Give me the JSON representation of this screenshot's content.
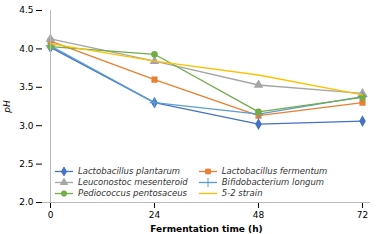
{
  "chart_data": {
    "type": "line",
    "x": [
      0,
      24,
      48,
      72
    ],
    "series": [
      {
        "name": "Lactobacillus plantarum",
        "color": "#4472C4",
        "marker": "diamond",
        "line_style": "solid",
        "values": [
          4.02,
          3.3,
          3.02,
          3.06
        ]
      },
      {
        "name": "Lactobacillus fermentum",
        "color": "#ED7D31",
        "marker": "square",
        "line_style": "solid",
        "values": [
          4.1,
          3.6,
          3.13,
          3.3
        ]
      },
      {
        "name": "Leuconostoc mesenteroid",
        "color": "#A5A5A5",
        "marker": "triangle",
        "line_style": "solid",
        "values": [
          4.13,
          3.84,
          3.53,
          3.42
        ]
      },
      {
        "name": "Bifidobacterium longum",
        "color": "#5B9BD5",
        "marker": "plus",
        "line_style": "solid",
        "values": [
          4.04,
          3.3,
          3.15,
          3.38
        ]
      },
      {
        "name": "Pediococcus pentosaceus",
        "color": "#70AD47",
        "marker": "circle",
        "line_style": "solid",
        "values": [
          4.03,
          3.93,
          3.18,
          3.37
        ]
      },
      {
        "name": "5-2 strain",
        "color": "#FFC000",
        "marker": "none",
        "line_style": "solid",
        "values": [
          4.07,
          3.84,
          3.66,
          3.4
        ]
      }
    ],
    "xlabel": "Fermentation time (h)",
    "ylabel": "pH",
    "xlim": [
      0,
      72
    ],
    "xticks": [
      0,
      24,
      48,
      72
    ],
    "ylim": [
      2.0,
      4.5
    ],
    "yticks": [
      {
        "value": 2,
        "label": "2.0"
      },
      2.5,
      {
        "value": 3,
        "label": "3.0"
      },
      3.5,
      {
        "value": 4,
        "label": "4.0"
      },
      4.5
    ],
    "grid": false,
    "legend": "lower left"
  }
}
